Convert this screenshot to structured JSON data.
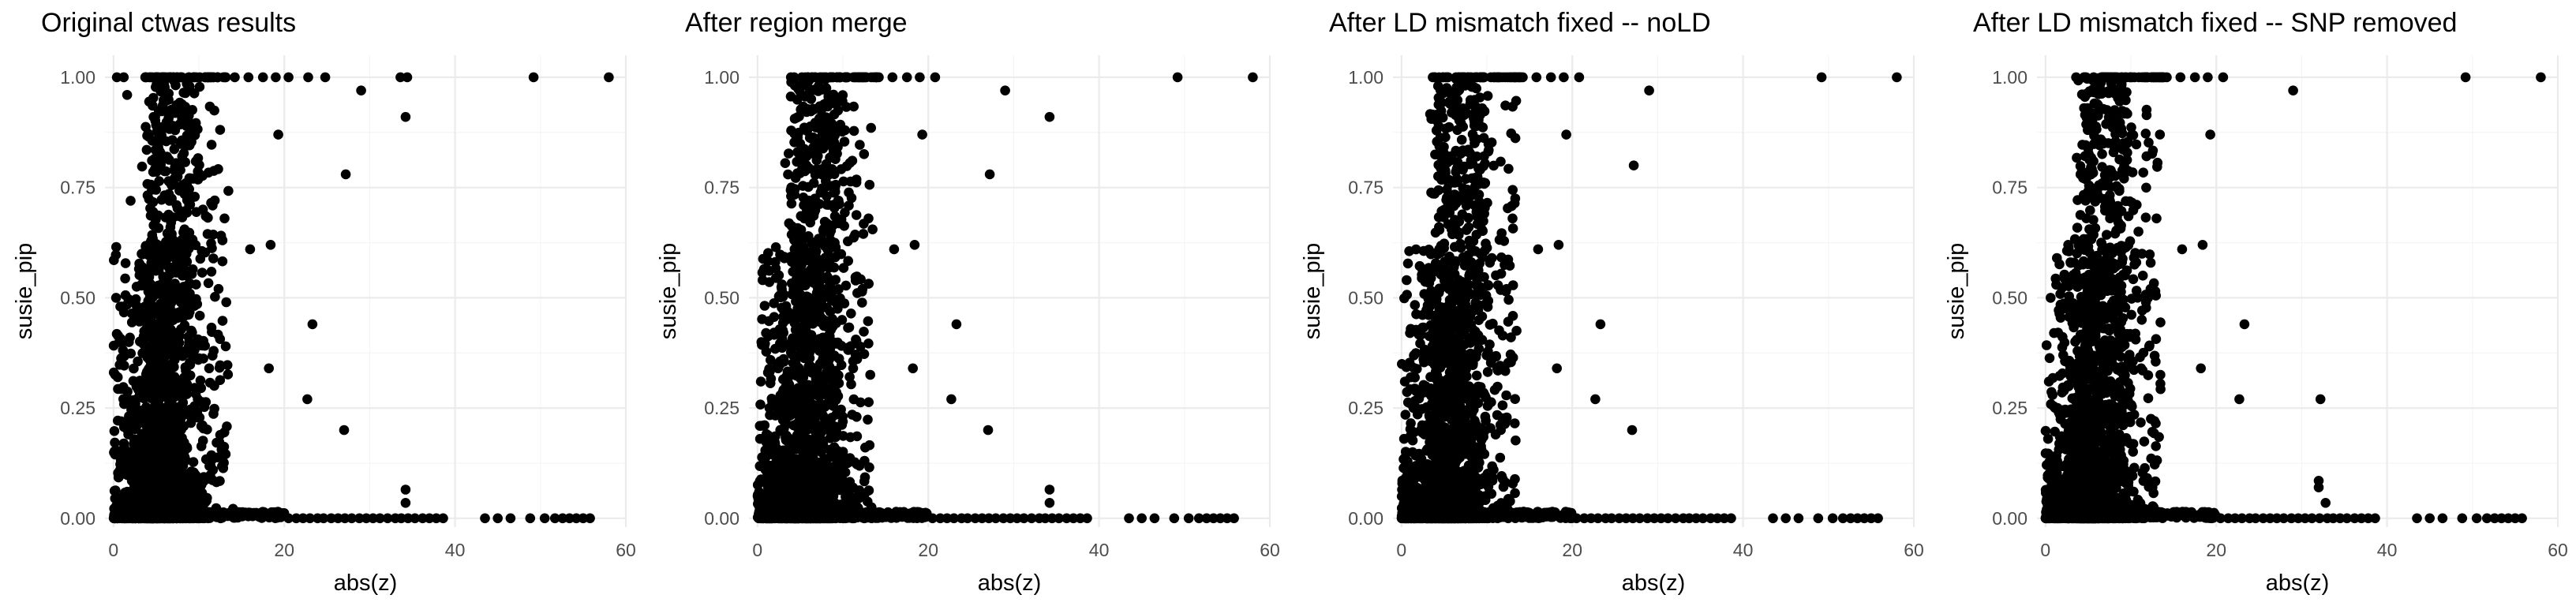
{
  "chart_data": [
    {
      "type": "scatter",
      "title": "Original ctwas results",
      "xlabel": "abs(z)",
      "ylabel": "susie_pip",
      "xlim": [
        -1,
        60
      ],
      "ylim": [
        -0.02,
        1.05
      ],
      "x_ticks": [
        "0",
        "20",
        "40",
        "60"
      ],
      "y_ticks": [
        "0.00",
        "0.25",
        "0.50",
        "0.75",
        "1.00"
      ],
      "grid": true,
      "outliers": [
        [
          22.8,
          1.0
        ],
        [
          24.8,
          1.0
        ],
        [
          33.6,
          1.0
        ],
        [
          34.4,
          1.0
        ],
        [
          49.2,
          1.0
        ],
        [
          58.0,
          1.0
        ],
        [
          29.0,
          0.97
        ],
        [
          19.3,
          0.87
        ],
        [
          34.2,
          0.91
        ],
        [
          27.2,
          0.78
        ],
        [
          18.4,
          0.62
        ],
        [
          16.0,
          0.61
        ],
        [
          23.3,
          0.44
        ],
        [
          18.2,
          0.34
        ],
        [
          22.7,
          0.27
        ],
        [
          27.0,
          0.2
        ],
        [
          34.2,
          0.065
        ],
        [
          34.2,
          0.035
        ],
        [
          2.0,
          0.72
        ],
        [
          0.3,
          0.5
        ],
        [
          0.8,
          0.48
        ],
        [
          1.1,
          0.4
        ],
        [
          0.5,
          0.32
        ],
        [
          0.9,
          0.22
        ],
        [
          0.2,
          0.15
        ],
        [
          1.6,
          0.96
        ],
        [
          0.4,
          1.0
        ],
        [
          1.2,
          1.0
        ],
        [
          14.2,
          1.0
        ],
        [
          15.8,
          1.0
        ],
        [
          17.5,
          1.0
        ],
        [
          19.0,
          1.0
        ],
        [
          20.5,
          1.0
        ],
        [
          13.0,
          0.68
        ],
        [
          12.3,
          0.52
        ],
        [
          11.2,
          0.34
        ]
      ],
      "baseline_points_x": [
        20.5,
        21.4,
        22.2,
        23.0,
        23.9,
        24.6,
        25.5,
        26.3,
        27.1,
        27.9,
        28.8,
        29.6,
        30.4,
        31.2,
        32.1,
        33.0,
        33.7,
        34.5,
        35.3,
        36.2,
        37.0,
        37.8,
        38.6,
        43.5,
        45.0,
        46.5,
        48.8,
        50.5,
        51.7,
        52.6,
        53.4,
        54.2,
        55.0,
        55.8
      ]
    },
    {
      "type": "scatter",
      "title": "After region merge",
      "xlabel": "abs(z)",
      "ylabel": "susie_pip",
      "xlim": [
        -1,
        60
      ],
      "ylim": [
        -0.02,
        1.05
      ],
      "x_ticks": [
        "0",
        "20",
        "40",
        "60"
      ],
      "y_ticks": [
        "0.00",
        "0.25",
        "0.50",
        "0.75",
        "1.00"
      ],
      "grid": true,
      "outliers": [
        [
          20.8,
          1.0
        ],
        [
          49.2,
          1.0
        ],
        [
          58.0,
          1.0
        ],
        [
          29.0,
          0.97
        ],
        [
          34.2,
          0.91
        ],
        [
          27.2,
          0.78
        ],
        [
          19.3,
          0.87
        ],
        [
          18.4,
          0.62
        ],
        [
          16.0,
          0.61
        ],
        [
          23.3,
          0.44
        ],
        [
          18.2,
          0.34
        ],
        [
          22.7,
          0.27
        ],
        [
          27.0,
          0.2
        ],
        [
          34.2,
          0.065
        ],
        [
          34.2,
          0.035
        ],
        [
          0.6,
          0.54
        ],
        [
          1.0,
          0.42
        ],
        [
          0.4,
          0.31
        ],
        [
          1.4,
          0.25
        ],
        [
          0.3,
          0.18
        ],
        [
          14.2,
          1.0
        ],
        [
          15.8,
          1.0
        ],
        [
          17.5,
          1.0
        ],
        [
          19.0,
          1.0
        ],
        [
          13.0,
          0.68
        ],
        [
          12.3,
          0.52
        ],
        [
          11.2,
          0.34
        ]
      ],
      "baseline_points_x": [
        20.5,
        21.4,
        22.2,
        23.0,
        23.9,
        24.6,
        25.5,
        26.3,
        27.1,
        27.9,
        28.8,
        29.6,
        30.4,
        31.2,
        32.1,
        33.0,
        33.7,
        34.5,
        35.3,
        36.2,
        37.0,
        37.8,
        38.6,
        43.5,
        45.0,
        46.5,
        48.8,
        50.5,
        51.7,
        52.6,
        53.4,
        54.2,
        55.0,
        55.8
      ]
    },
    {
      "type": "scatter",
      "title": "After LD mismatch fixed -- noLD",
      "xlabel": "abs(z)",
      "ylabel": "susie_pip",
      "xlim": [
        -1,
        60
      ],
      "ylim": [
        -0.02,
        1.05
      ],
      "x_ticks": [
        "0",
        "20",
        "40",
        "60"
      ],
      "y_ticks": [
        "0.00",
        "0.25",
        "0.50",
        "0.75",
        "1.00"
      ],
      "grid": true,
      "outliers": [
        [
          20.8,
          1.0
        ],
        [
          49.2,
          1.0
        ],
        [
          58.0,
          1.0
        ],
        [
          29.0,
          0.97
        ],
        [
          27.2,
          0.8
        ],
        [
          19.3,
          0.87
        ],
        [
          18.4,
          0.62
        ],
        [
          16.0,
          0.61
        ],
        [
          23.3,
          0.44
        ],
        [
          18.2,
          0.34
        ],
        [
          22.7,
          0.27
        ],
        [
          27.0,
          0.2
        ],
        [
          0.6,
          0.54
        ],
        [
          1.0,
          0.42
        ],
        [
          0.4,
          0.31
        ],
        [
          1.4,
          0.25
        ],
        [
          0.3,
          0.18
        ],
        [
          14.2,
          1.0
        ],
        [
          15.8,
          1.0
        ],
        [
          17.5,
          1.0
        ],
        [
          19.0,
          1.0
        ],
        [
          13.0,
          0.68
        ],
        [
          12.3,
          0.52
        ],
        [
          11.2,
          0.34
        ]
      ],
      "baseline_points_x": [
        20.5,
        21.4,
        22.2,
        23.0,
        23.9,
        24.6,
        25.5,
        26.3,
        27.1,
        27.9,
        28.8,
        29.6,
        30.4,
        31.2,
        32.1,
        33.0,
        33.7,
        34.5,
        35.3,
        36.2,
        37.0,
        37.8,
        38.6,
        43.5,
        45.0,
        46.5,
        48.8,
        50.5,
        51.7,
        52.6,
        53.4,
        54.2,
        55.0,
        55.8
      ]
    },
    {
      "type": "scatter",
      "title": "After LD mismatch fixed -- SNP removed",
      "xlabel": "abs(z)",
      "ylabel": "susie_pip",
      "xlim": [
        -1,
        60
      ],
      "ylim": [
        -0.02,
        1.05
      ],
      "x_ticks": [
        "0",
        "20",
        "40",
        "60"
      ],
      "y_ticks": [
        "0.00",
        "0.25",
        "0.50",
        "0.75",
        "1.00"
      ],
      "grid": true,
      "outliers": [
        [
          20.8,
          1.0
        ],
        [
          49.2,
          1.0
        ],
        [
          58.0,
          1.0
        ],
        [
          29.0,
          0.97
        ],
        [
          19.3,
          0.87
        ],
        [
          18.4,
          0.62
        ],
        [
          16.0,
          0.61
        ],
        [
          23.3,
          0.44
        ],
        [
          18.2,
          0.34
        ],
        [
          22.7,
          0.27
        ],
        [
          32.2,
          0.27
        ],
        [
          32.0,
          0.085
        ],
        [
          32.0,
          0.07
        ],
        [
          32.8,
          0.035
        ],
        [
          0.6,
          0.5
        ],
        [
          1.0,
          0.42
        ],
        [
          0.4,
          0.31
        ],
        [
          1.4,
          0.25
        ],
        [
          0.3,
          0.18
        ],
        [
          14.2,
          1.0
        ],
        [
          15.8,
          1.0
        ],
        [
          17.5,
          1.0
        ],
        [
          19.0,
          1.0
        ],
        [
          13.0,
          0.68
        ],
        [
          12.3,
          0.52
        ],
        [
          11.2,
          0.34
        ]
      ],
      "baseline_points_x": [
        20.5,
        21.4,
        22.2,
        23.0,
        23.9,
        24.6,
        25.5,
        26.3,
        27.1,
        27.9,
        28.8,
        29.6,
        30.4,
        31.2,
        32.1,
        33.0,
        33.7,
        34.5,
        35.3,
        36.2,
        37.0,
        37.8,
        38.6,
        43.5,
        45.0,
        46.5,
        48.8,
        50.5,
        51.7,
        52.6,
        53.4,
        54.2,
        55.0,
        55.8
      ]
    }
  ]
}
